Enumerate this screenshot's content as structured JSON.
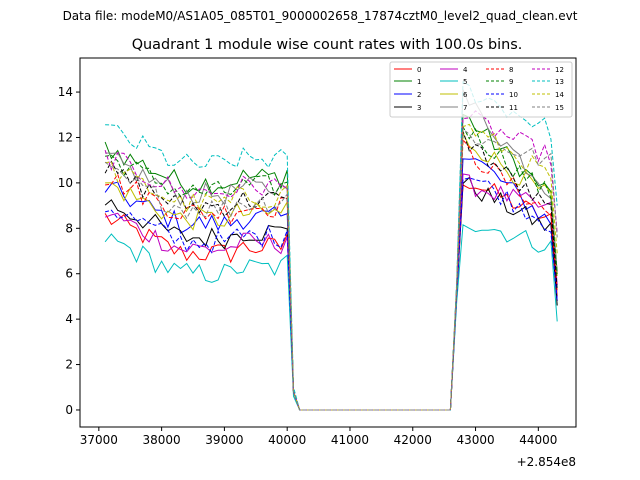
{
  "chart_data": {
    "type": "line",
    "suptitle": "Data file: modeM0/AS1A05_085T01_9000002658_17874cztM0_level2_quad_clean.evt",
    "title": "Quadrant 1 module wise count rates with 100.0s bins.",
    "xlabel": "",
    "ylabel": "",
    "x_offset_label": "+2.854e8",
    "xlim": [
      36700,
      44600
    ],
    "ylim": [
      -0.75,
      15.5
    ],
    "xticks": [
      37000,
      38000,
      39000,
      40000,
      41000,
      42000,
      43000,
      44000
    ],
    "xtick_labels": [
      "37000",
      "38000",
      "39000",
      "40000",
      "41000",
      "42000",
      "43000",
      "44000"
    ],
    "yticks": [
      0,
      2,
      4,
      6,
      8,
      10,
      12,
      14
    ],
    "ytick_labels": [
      "0",
      "2",
      "4",
      "6",
      "8",
      "10",
      "12",
      "14"
    ],
    "legend_position": "top-right",
    "segments": [
      {
        "x_start": 37100,
        "x_end": 40000,
        "step": 100
      },
      {
        "x_start": 40100,
        "x_end": 42600,
        "step": 100
      },
      {
        "x_start": 42700,
        "x_end": 44300,
        "step": 100
      }
    ],
    "series": [
      {
        "name": "0",
        "color": "#ff0000",
        "dash": false,
        "pre": 6.9,
        "high": 10.2,
        "end": 5.0,
        "drop": 0.8
      },
      {
        "name": "1",
        "color": "#008000",
        "dash": false,
        "pre": 10.0,
        "high": 13.0,
        "end": 6.0,
        "drop": 0.8
      },
      {
        "name": "2",
        "color": "#0000ff",
        "dash": false,
        "pre": 8.2,
        "high": 11.5,
        "end": 4.8,
        "drop": 0.8
      },
      {
        "name": "3",
        "color": "#000000",
        "dash": false,
        "pre": 7.6,
        "high": 10.0,
        "end": 4.6,
        "drop": 0.8
      },
      {
        "name": "4",
        "color": "#bf00bf",
        "dash": false,
        "pre": 7.1,
        "high": 10.0,
        "end": 5.5,
        "drop": 0.8
      },
      {
        "name": "5",
        "color": "#00bfbf",
        "dash": false,
        "pre": 6.0,
        "high": 8.4,
        "end": 3.9,
        "drop": 0.6
      },
      {
        "name": "6",
        "color": "#bfbf00",
        "dash": false,
        "pre": 8.4,
        "high": 12.0,
        "end": 5.9,
        "drop": 0.8
      },
      {
        "name": "7",
        "color": "#808080",
        "dash": false,
        "pre": 9.5,
        "high": 13.8,
        "end": 6.1,
        "drop": 0.8
      },
      {
        "name": "8",
        "color": "#ff0000",
        "dash": true,
        "pre": 8.7,
        "high": 11.5,
        "end": 5.2,
        "drop": 0.8
      },
      {
        "name": "9",
        "color": "#008000",
        "dash": true,
        "pre": 9.6,
        "high": 12.5,
        "end": 6.0,
        "drop": 0.8
      },
      {
        "name": "10",
        "color": "#0000ff",
        "dash": true,
        "pre": 7.4,
        "high": 10.5,
        "end": 4.8,
        "drop": 0.8
      },
      {
        "name": "11",
        "color": "#000000",
        "dash": true,
        "pre": 9.0,
        "high": 12.0,
        "end": 5.3,
        "drop": 0.8
      },
      {
        "name": "12",
        "color": "#bf00bf",
        "dash": true,
        "pre": 9.6,
        "high": 13.0,
        "end": 7.8,
        "drop": 0.8
      },
      {
        "name": "13",
        "color": "#00bfbf",
        "dash": true,
        "pre": 10.8,
        "high": 14.2,
        "end": 9.0,
        "drop": 1.0
      },
      {
        "name": "14",
        "color": "#bfbf00",
        "dash": true,
        "pre": 9.1,
        "high": 12.6,
        "end": 6.9,
        "drop": 0.8
      },
      {
        "name": "15",
        "color": "#808080",
        "dash": true,
        "pre": 8.9,
        "high": 12.2,
        "end": 7.6,
        "drop": 0.8
      }
    ]
  }
}
